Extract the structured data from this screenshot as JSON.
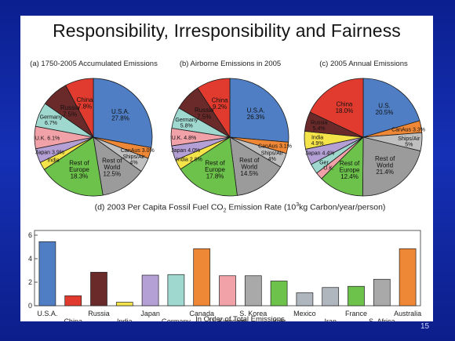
{
  "slide": {
    "title": "Responsibility, Irresponsibility and Fairness",
    "number": "15"
  },
  "chart_data": [
    {
      "type": "pie",
      "title": "(a)  1750-2005 Accumulated Emissions",
      "slices": [
        {
          "label": "U.S.A.",
          "value": 27.8,
          "text": "U.S.A.\n27.8%",
          "color": "#4f7ec4"
        },
        {
          "label": "CanAus",
          "value": 3.0,
          "text": "CanAus 3.0%",
          "color": "#ef8836"
        },
        {
          "label": "Ships/Air",
          "value": 4.0,
          "text": "Ships/Air\n4%",
          "color": "#bfbfbf"
        },
        {
          "label": "Rest of World",
          "value": 12.5,
          "text": "Rest of\nWorld\n12.5%",
          "color": "#9b9b9b"
        },
        {
          "label": "Rest of Europe",
          "value": 18.3,
          "text": "Rest of\nEurope\n18.3%",
          "color": "#6cc24a"
        },
        {
          "label": "India",
          "value": 2.2,
          "text": "India",
          "color": "#f5e34a"
        },
        {
          "label": "Japan",
          "value": 3.9,
          "text": "Japan 3.9%",
          "color": "#b5a0d6"
        },
        {
          "label": "U.K.",
          "value": 6.1,
          "text": "U.K. 6.1%",
          "color": "#f1a1a8"
        },
        {
          "label": "Germany",
          "value": 6.7,
          "text": "Germany\n6.7%",
          "color": "#9fd8cf"
        },
        {
          "label": "Russia",
          "value": 7.5,
          "text": "Russia\n7.5%",
          "color": "#6b2a2a"
        },
        {
          "label": "China",
          "value": 7.8,
          "text": "China\n7.8%",
          "color": "#e03b2e"
        }
      ]
    },
    {
      "type": "pie",
      "title": "(b)  Airborne Emissions in 2005",
      "slices": [
        {
          "label": "U.S.A.",
          "value": 26.3,
          "text": "U.S.A.\n26.3%",
          "color": "#4f7ec4"
        },
        {
          "label": "CanAus",
          "value": 3.1,
          "text": "CanAus 3.1%",
          "color": "#ef8836"
        },
        {
          "label": "Ships/Air",
          "value": 4.0,
          "text": "Ships/Air\n4%",
          "color": "#bfbfbf"
        },
        {
          "label": "Rest of World",
          "value": 14.5,
          "text": "Rest of\nWorld\n14.5%",
          "color": "#9b9b9b"
        },
        {
          "label": "Rest of Europe",
          "value": 17.8,
          "text": "Rest of\nEurope\n17.8%",
          "color": "#6cc24a"
        },
        {
          "label": "India",
          "value": 2.8,
          "text": "India 2.8%",
          "color": "#f5e34a"
        },
        {
          "label": "Japan",
          "value": 4.0,
          "text": "Japan 4.0%",
          "color": "#b5a0d6"
        },
        {
          "label": "U.K.",
          "value": 4.8,
          "text": "U.K. 4.8%",
          "color": "#f1a1a8"
        },
        {
          "label": "Germany",
          "value": 5.8,
          "text": "Germany\n5.8%",
          "color": "#9fd8cf"
        },
        {
          "label": "Russia",
          "value": 7.5,
          "text": "Russia\n7.5%",
          "color": "#6b2a2a"
        },
        {
          "label": "China",
          "value": 9.2,
          "text": "China\n9.2%",
          "color": "#e03b2e"
        }
      ]
    },
    {
      "type": "pie",
      "title": "(c)  2005 Annual Emissions",
      "slices": [
        {
          "label": "U.S.",
          "value": 20.5,
          "text": "U.S.\n20.5%",
          "color": "#4f7ec4"
        },
        {
          "label": "CanAus",
          "value": 3.3,
          "text": "CanAus 3.3%",
          "color": "#ef8836"
        },
        {
          "label": "Ships/Air",
          "value": 5.0,
          "text": "Ships/Air\n5%",
          "color": "#bfbfbf"
        },
        {
          "label": "Rest of World",
          "value": 21.4,
          "text": "Rest of\nWorld\n21.4%",
          "color": "#9b9b9b"
        },
        {
          "label": "Rest of Europe",
          "value": 12.4,
          "text": "Rest of\nEurope\n12.4%",
          "color": "#6cc24a"
        },
        {
          "label": "U.K.",
          "value": 2.0,
          "text": "U.K.",
          "color": "#f1a1a8"
        },
        {
          "label": "Germany",
          "value": 2.8,
          "text": "Ger.",
          "color": "#9fd8cf"
        },
        {
          "label": "Japan",
          "value": 4.4,
          "text": "Japan 4.4%",
          "color": "#b5a0d6"
        },
        {
          "label": "India",
          "value": 4.9,
          "text": "India\n4.9%",
          "color": "#f5e34a"
        },
        {
          "label": "Russia",
          "value": 5.4,
          "text": "Russia\n5.4%",
          "color": "#6b2a2a"
        },
        {
          "label": "China",
          "value": 18.0,
          "text": "China\n18.0%",
          "color": "#e03b2e"
        }
      ]
    },
    {
      "type": "bar",
      "title_main": "(d)  2003 Per Capita Fossil Fuel CO",
      "title_sub": "2",
      "title_mid": " Emission Rate (10",
      "title_sup": "3",
      "title_end": "kg Carbon/year/person)",
      "xlabel": "In Order of Total Emissions",
      "ylim": [
        0,
        6
      ],
      "yticks": [
        0,
        2,
        4,
        6
      ],
      "categories": [
        "U.S.A.",
        "China",
        "Russia",
        "India",
        "Japan",
        "Germany",
        "Canada",
        "U. Kingdom",
        "S. Korea",
        "Italy",
        "Mexico",
        "Iran",
        "France",
        "S. Africa",
        "Australia"
      ],
      "values": [
        5.45,
        0.85,
        2.85,
        0.3,
        2.6,
        2.65,
        4.85,
        2.55,
        2.55,
        2.1,
        1.1,
        1.55,
        1.65,
        2.25,
        4.85
      ],
      "colors": [
        "#4f7ec4",
        "#e03b2e",
        "#6b2a2a",
        "#f5e34a",
        "#b5a0d6",
        "#9fd8cf",
        "#ef8836",
        "#f1a1a8",
        "#a9a9a9",
        "#6cc24a",
        "#b0b6bd",
        "#b0b6bd",
        "#6cc24a",
        "#a9a9a9",
        "#ef8836"
      ]
    }
  ]
}
